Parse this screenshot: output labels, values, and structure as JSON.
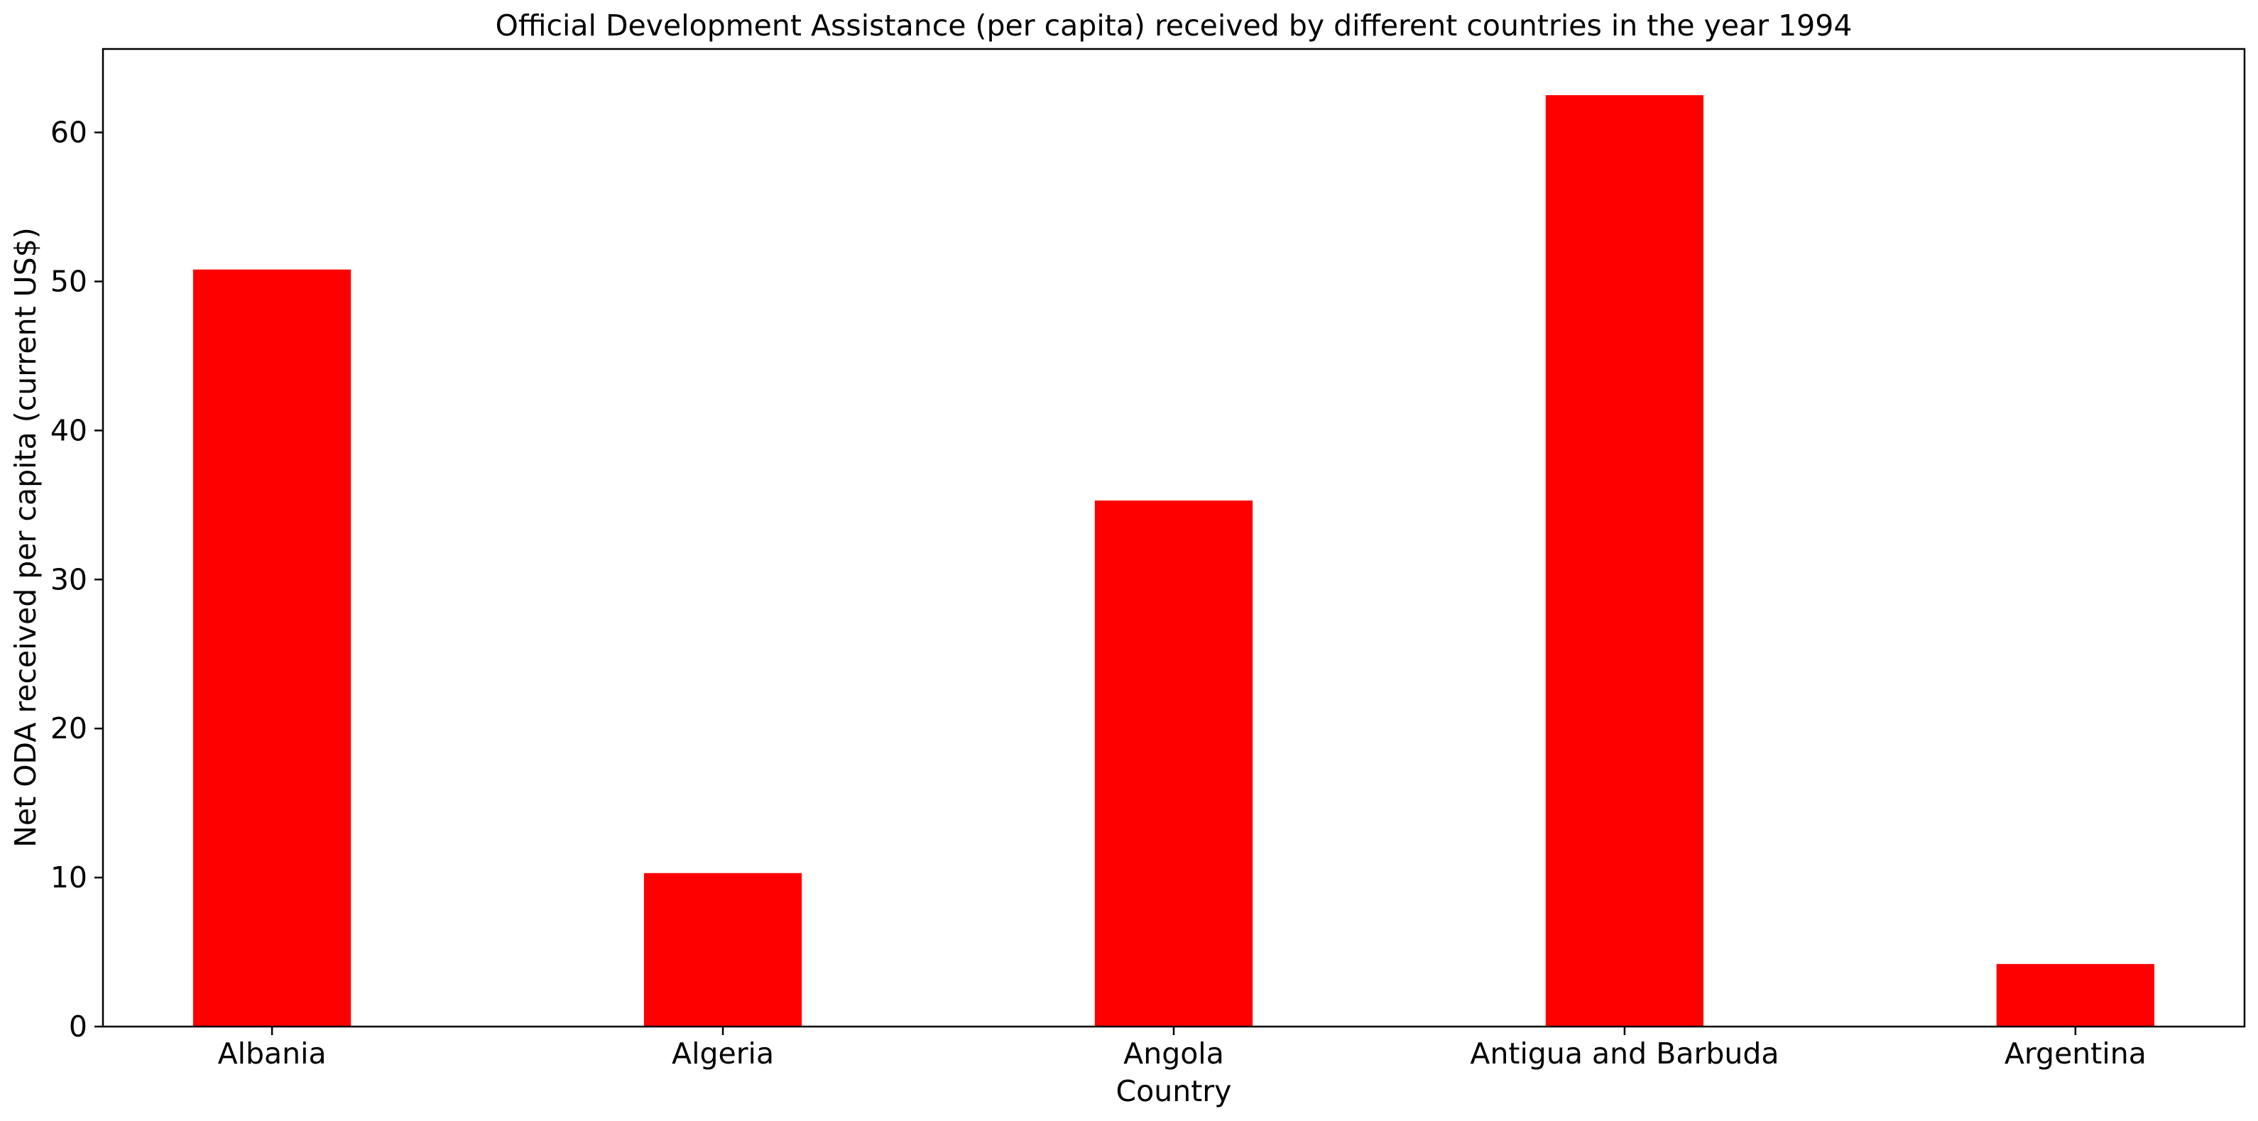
{
  "chart_data": {
    "type": "bar",
    "title": "Official Development Assistance (per capita) received by different countries in the year 1994",
    "xlabel": "Country",
    "ylabel": "Net ODA received per capita (current US$)",
    "categories": [
      "Albania",
      "Algeria",
      "Angola",
      "Antigua and Barbuda",
      "Argentina"
    ],
    "values": [
      50.8,
      10.3,
      35.3,
      62.5,
      4.2
    ],
    "ylim": [
      0,
      65.6
    ],
    "yticks": [
      0,
      10,
      20,
      30,
      40,
      50,
      60
    ],
    "grid": false,
    "legend": "none",
    "bar_color": "#ff0000"
  }
}
